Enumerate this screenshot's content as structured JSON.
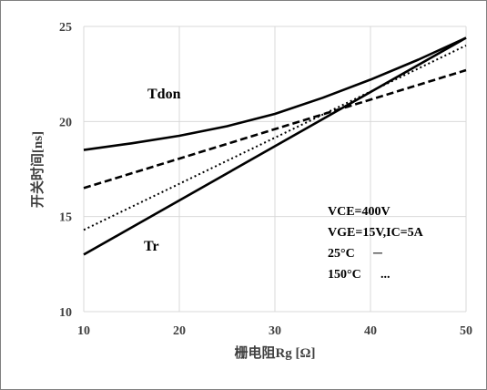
{
  "chart_data": {
    "type": "line",
    "title": "",
    "xlabel": "栅电阻Rg [Ω]",
    "ylabel": "开关时间[ns]",
    "xlim": [
      10,
      50
    ],
    "ylim": [
      10,
      25
    ],
    "x_ticks": [
      "10",
      "20",
      "30",
      "40",
      "50"
    ],
    "y_ticks": [
      "10",
      "15",
      "20",
      "25"
    ],
    "grid": true,
    "legend": "none",
    "series": [
      {
        "name": "Tdon",
        "condition": "25°C",
        "style": "solid",
        "x": [
          10,
          15,
          20,
          25,
          30,
          35,
          40,
          45,
          50
        ],
        "y": [
          18.5,
          18.85,
          19.25,
          19.75,
          20.4,
          21.25,
          22.2,
          23.25,
          24.4
        ]
      },
      {
        "name": "Tdon",
        "condition": "150°C",
        "style": "dashed",
        "x": [
          10,
          50
        ],
        "y": [
          16.5,
          22.7
        ]
      },
      {
        "name": "Tr",
        "condition": "25°C",
        "style": "solid",
        "x": [
          10,
          50
        ],
        "y": [
          13.0,
          24.4
        ]
      },
      {
        "name": "Tr",
        "condition": "150°C",
        "style": "dotted",
        "x": [
          10,
          50
        ],
        "y": [
          14.3,
          24.0
        ]
      }
    ],
    "annotations": {
      "tdon": "Tdon",
      "tr": "Tr",
      "conditions": [
        "VCE=400V",
        "VGE=15V,IC=5A",
        "25°C",
        "150°C"
      ],
      "style_keys": [
        "─",
        "..."
      ]
    }
  },
  "colors": {
    "line": "#000000",
    "grid": "#d9d9d9",
    "text": "#404040",
    "border": "#808080"
  }
}
